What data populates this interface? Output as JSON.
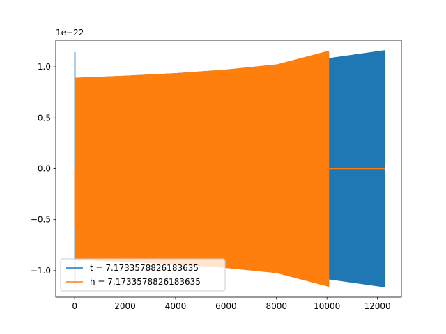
{
  "chart_data": {
    "type": "line",
    "title": "",
    "xlabel": "",
    "ylabel": "",
    "y_offset_label": "1e−22",
    "xlim": [
      -750,
      12950
    ],
    "ylim": [
      -1.26,
      1.26
    ],
    "x_ticks": [
      0,
      2000,
      4000,
      6000,
      8000,
      10000,
      12000
    ],
    "x_tick_labels": [
      "0",
      "2000",
      "4000",
      "6000",
      "8000",
      "10000",
      "12000"
    ],
    "y_ticks": [
      -1.0,
      -0.5,
      0.0,
      0.5,
      1.0
    ],
    "y_tick_labels": [
      "−1.0",
      "−0.5",
      "0.0",
      "0.5",
      "1.0"
    ],
    "grid": false,
    "legend_position": "lower-left",
    "series": [
      {
        "name": "t = 7.1733578826183635",
        "color": "#1f77b4",
        "envelope": {
          "x": [
            30,
            2000,
            4000,
            6000,
            8000,
            10000,
            12288
          ],
          "upper": [
            0.89,
            0.91,
            0.935,
            0.97,
            1.02,
            1.08,
            1.16
          ],
          "lower": [
            -0.89,
            -0.91,
            -0.935,
            -0.97,
            -1.02,
            -1.08,
            -1.16
          ]
        },
        "spike": {
          "x": [
            0,
            20
          ],
          "upper": 1.14,
          "lower": -1.16
        }
      },
      {
        "name": "h = 7.1733578826183635",
        "color": "#ff7f0e",
        "envelope": {
          "x": [
            30,
            2000,
            4000,
            6000,
            8000,
            10000,
            10070
          ],
          "upper": [
            0.89,
            0.91,
            0.935,
            0.97,
            1.02,
            1.15,
            1.155
          ],
          "lower": [
            -0.89,
            -0.91,
            -0.935,
            -0.97,
            -1.02,
            -1.15,
            -1.155
          ]
        },
        "start_segment": {
          "x": [
            0,
            30
          ],
          "upper": 0.0,
          "lower": -0.57
        },
        "flat_segment": {
          "x": [
            10070,
            12288
          ],
          "y": 0.0
        }
      }
    ]
  }
}
